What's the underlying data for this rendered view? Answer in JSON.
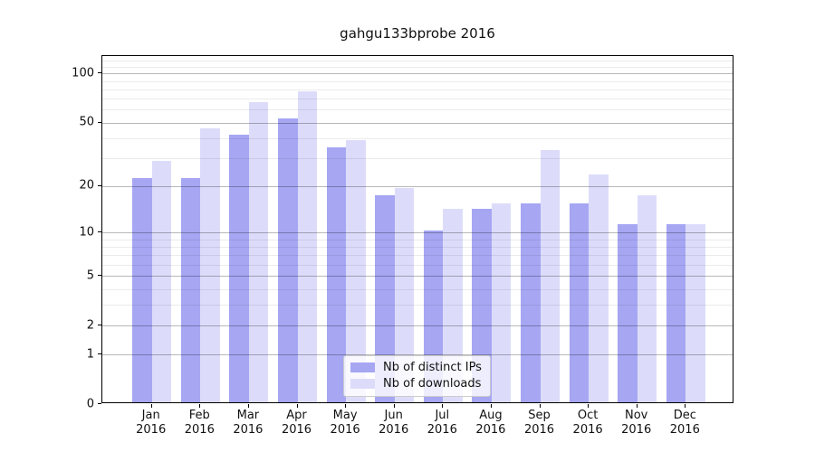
{
  "chart_data": {
    "type": "bar",
    "title": "gahgu133bprobe 2016",
    "categories": [
      "Jan",
      "Feb",
      "Mar",
      "Apr",
      "May",
      "Jun",
      "Jul",
      "Aug",
      "Sep",
      "Oct",
      "Nov",
      "Dec"
    ],
    "x_tick_second_line": "2016",
    "series": [
      {
        "name": "Nb of distinct IPs",
        "color": "#a6a6f3",
        "values": [
          22,
          22,
          41,
          52,
          34,
          17,
          10,
          14,
          15,
          15,
          11,
          11
        ]
      },
      {
        "name": "Nb of downloads",
        "color": "#dcdcfa",
        "values": [
          28,
          45,
          65,
          76,
          38,
          19,
          14,
          15,
          33,
          23,
          17,
          11
        ]
      }
    ],
    "yscale": "log1p",
    "ylim": [
      0,
      128
    ],
    "yticks": [
      0,
      1,
      2,
      5,
      10,
      20,
      50,
      100
    ],
    "minor_gridlines": [
      3,
      4,
      6,
      7,
      8,
      9,
      30,
      40,
      60,
      70,
      80,
      90,
      110,
      120
    ],
    "grid": "horizontal",
    "legend_position": "bottom-center",
    "colors": {
      "major_grid": "rgba(0,0,0,0.28)",
      "minor_grid": "rgba(0,0,0,0.08)",
      "axis": "#000000",
      "text": "#111111"
    }
  }
}
